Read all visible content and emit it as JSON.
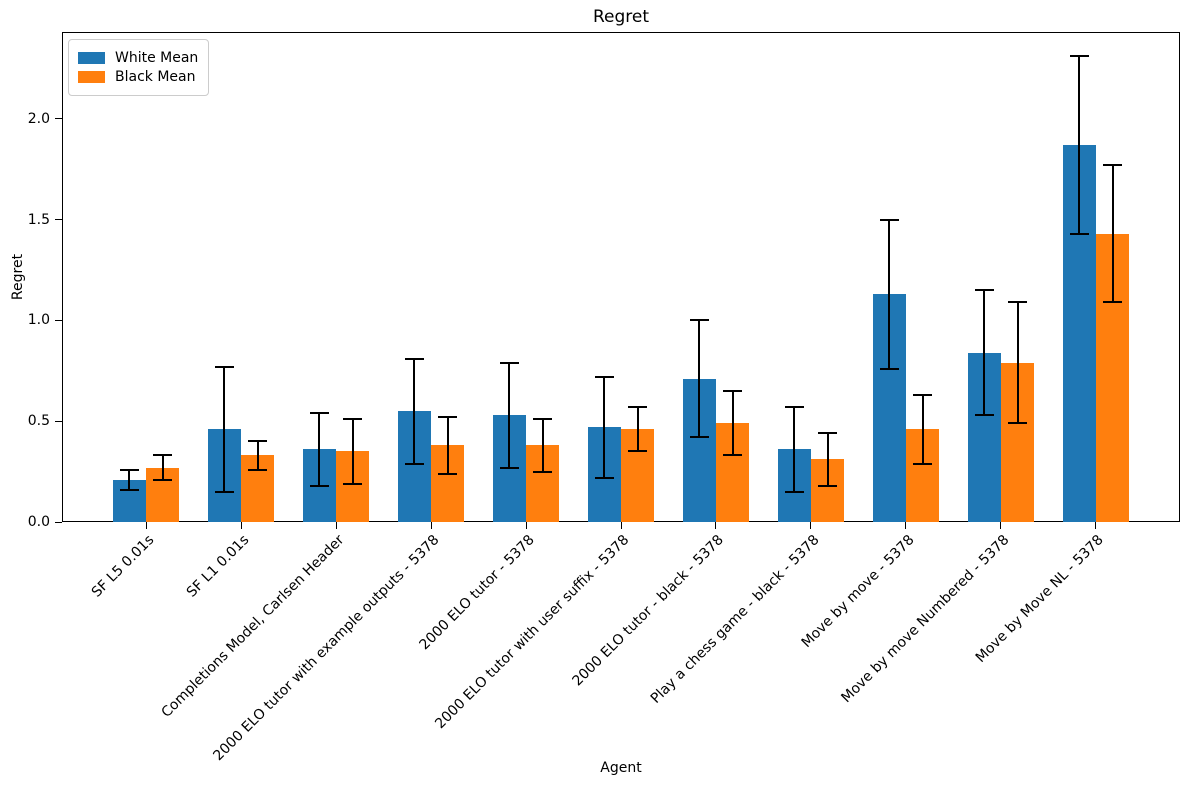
{
  "chart_data": {
    "type": "bar",
    "title": "Regret",
    "xlabel": "Agent",
    "ylabel": "Regret",
    "grid": false,
    "legend_position": "upper left",
    "bar_width": 0.35,
    "xlim": [
      -0.885,
      10.885
    ],
    "ylim": [
      0,
      2.43
    ],
    "yticks": [
      {
        "value": 0.0,
        "label": "0.0"
      },
      {
        "value": 0.5,
        "label": "0.5"
      },
      {
        "value": 1.0,
        "label": "1.0"
      },
      {
        "value": 1.5,
        "label": "1.5"
      },
      {
        "value": 2.0,
        "label": "2.0"
      }
    ],
    "categories": [
      "SF L5 0.01s",
      "SF L1 0.01s",
      "Completions Model, Carlsen Header",
      "2000 ELO tutor with example outputs - 5378",
      "2000 ELO tutor - 5378",
      "2000 ELO tutor with user suffix - 5378",
      "2000 ELO tutor - black - 5378",
      "Play a chess game - black - 5378",
      "Move by move - 5378",
      "Move by move Numbered - 5378",
      "Move by Move NL - 5378"
    ],
    "series": [
      {
        "name": "White Mean",
        "color": "#1f77b4",
        "values": [
          0.21,
          0.46,
          0.36,
          0.55,
          0.53,
          0.47,
          0.71,
          0.36,
          1.13,
          0.84,
          1.87
        ],
        "errors": [
          0.05,
          0.31,
          0.18,
          0.26,
          0.26,
          0.25,
          0.29,
          0.21,
          0.37,
          0.31,
          0.44
        ]
      },
      {
        "name": "Black Mean",
        "color": "#ff7f0e",
        "values": [
          0.27,
          0.33,
          0.35,
          0.38,
          0.38,
          0.46,
          0.49,
          0.31,
          0.46,
          0.79,
          1.43
        ],
        "errors": [
          0.06,
          0.07,
          0.16,
          0.14,
          0.13,
          0.11,
          0.16,
          0.13,
          0.17,
          0.3,
          0.34
        ]
      }
    ],
    "error_bar_color": "#000000"
  }
}
